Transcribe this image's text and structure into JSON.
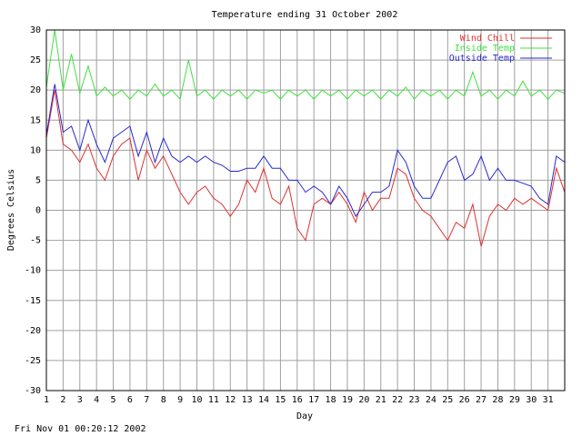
{
  "chart_data": {
    "type": "line",
    "title": "Temperature ending 31 October 2002",
    "x_label": "Day",
    "y_label": "Degrees Celsius",
    "timestamp": "Fri Nov 01 00:20:12 2002",
    "xlim": [
      1,
      32
    ],
    "xticks": [
      1,
      2,
      3,
      4,
      5,
      6,
      7,
      8,
      9,
      10,
      11,
      12,
      13,
      14,
      15,
      16,
      17,
      18,
      19,
      20,
      21,
      22,
      23,
      24,
      25,
      26,
      27,
      28,
      29,
      30,
      31
    ],
    "ylim": [
      -30,
      30
    ],
    "yticks": [
      -30,
      -25,
      -20,
      -15,
      -10,
      -5,
      0,
      5,
      10,
      15,
      20,
      25,
      30
    ],
    "grid": true,
    "legend": "top-right",
    "x": [
      1,
      1.5,
      2,
      2.5,
      3,
      3.5,
      4,
      4.5,
      5,
      5.5,
      6,
      6.5,
      7,
      7.5,
      8,
      8.5,
      9,
      9.5,
      10,
      10.5,
      11,
      11.5,
      12,
      12.5,
      13,
      13.5,
      14,
      14.5,
      15,
      15.5,
      16,
      16.5,
      17,
      17.5,
      18,
      18.5,
      19,
      19.5,
      20,
      20.5,
      21,
      21.5,
      22,
      22.5,
      23,
      23.5,
      24,
      24.5,
      25,
      25.5,
      26,
      26.5,
      27,
      27.5,
      28,
      28.5,
      29,
      29.5,
      30,
      30.5,
      31,
      31.5,
      32
    ],
    "series": [
      {
        "name": "Wind Chill",
        "color": "#e03030",
        "values": [
          12,
          20,
          11,
          10,
          8,
          11,
          7,
          5,
          9,
          11,
          12,
          5,
          10,
          7,
          9,
          6,
          3,
          1,
          3,
          4,
          2,
          1,
          -1,
          1,
          5,
          3,
          7,
          2,
          1,
          4,
          -3,
          -5,
          1,
          2,
          1,
          3,
          1,
          -2,
          3,
          0,
          2,
          2,
          7,
          6,
          2,
          0,
          -1,
          -3,
          -5,
          -2,
          -3,
          1,
          -6,
          -1,
          1,
          0,
          2,
          1,
          2,
          1,
          0,
          7,
          3
        ]
      },
      {
        "name": "Inside Temp",
        "color": "#40e040",
        "values": [
          20.5,
          30,
          20,
          26,
          19.5,
          24,
          19,
          20.5,
          19,
          20,
          18.5,
          20,
          19,
          21,
          19,
          20,
          18.5,
          25,
          19,
          20,
          18.5,
          20,
          19,
          20,
          18.5,
          20,
          19.5,
          20,
          18.5,
          20,
          19,
          20,
          18.5,
          20,
          19,
          20,
          18.5,
          20,
          19,
          20,
          18.5,
          20,
          19,
          20.5,
          18.5,
          20,
          19,
          20,
          18.5,
          20,
          19,
          23,
          19,
          20,
          18.5,
          20,
          19,
          21.5,
          19,
          20,
          18.5,
          20,
          19.5
        ]
      },
      {
        "name": "Outside Temp",
        "color": "#2828d0",
        "values": [
          12.5,
          21,
          13,
          14,
          10,
          15,
          11,
          8,
          12,
          13,
          14,
          9,
          13,
          8,
          12,
          9,
          8,
          9,
          8,
          9,
          8,
          7.5,
          6.5,
          6.5,
          7,
          7,
          9,
          7,
          7,
          5,
          5,
          3,
          4,
          3,
          1,
          4,
          2,
          -1,
          1,
          3,
          3,
          4,
          10,
          8,
          4,
          2,
          2,
          5,
          8,
          9,
          5,
          6,
          9,
          5,
          7,
          5,
          5,
          4.5,
          4,
          2,
          1,
          9,
          8
        ]
      }
    ]
  }
}
